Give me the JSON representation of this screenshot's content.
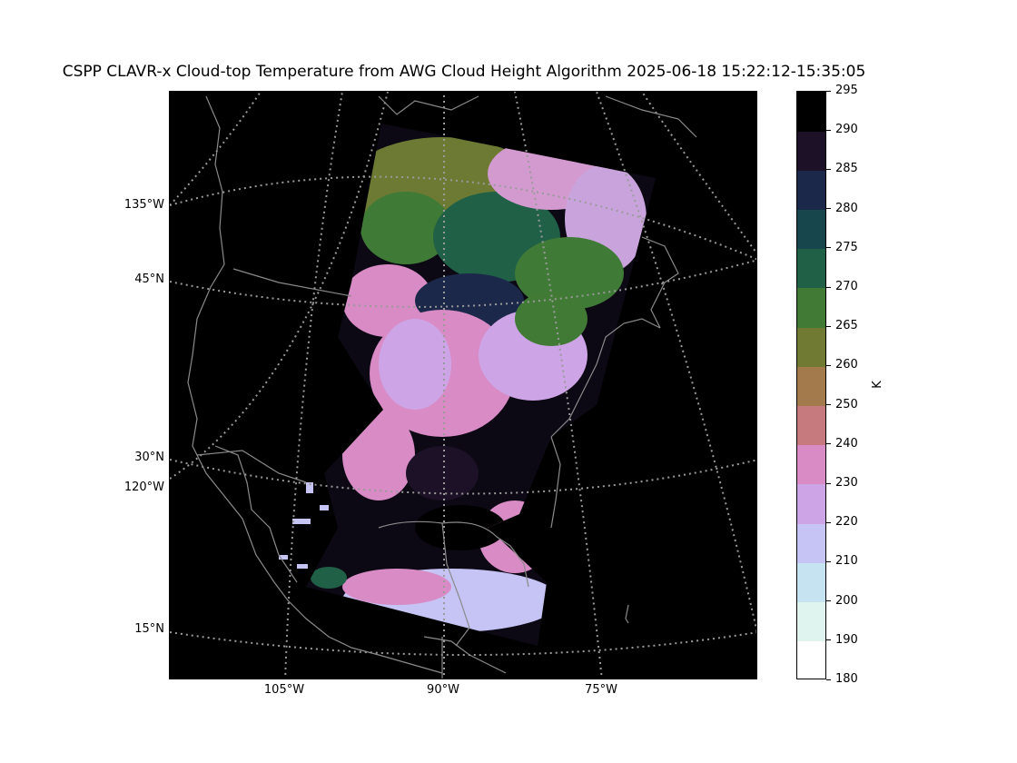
{
  "title": "CSPP CLAVR-x Cloud-top Temperature from AWG Cloud Height Algorithm 2025-06-18 15:22:12-15:35:05",
  "map": {
    "background_color": "#000000",
    "coastline_color": "#8a8a8a",
    "gridline_color": "#9a9a9a",
    "lat_labels": [
      {
        "text": "135°W"
      },
      {
        "text": "45°N"
      },
      {
        "text": "30°N"
      },
      {
        "text": "120°W"
      },
      {
        "text": "15°N"
      }
    ],
    "lon_labels": [
      {
        "text": "105°W"
      },
      {
        "text": "90°W"
      },
      {
        "text": "75°W"
      }
    ]
  },
  "colorbar": {
    "unit": "K",
    "min": 180,
    "max": 295,
    "ticks": [
      "180",
      "190",
      "200",
      "210",
      "220",
      "230",
      "240",
      "250",
      "260",
      "265",
      "270",
      "275",
      "280",
      "285",
      "290",
      "295"
    ],
    "colors": [
      "#ffffff",
      "#dff4ee",
      "#c6e3f2",
      "#c5c4f4",
      "#cda4e6",
      "#d88bc4",
      "#c77a7d",
      "#a37a4c",
      "#707a32",
      "#407a35",
      "#1f6047",
      "#17464d",
      "#1c284a",
      "#1c1126",
      "#000000"
    ]
  }
}
